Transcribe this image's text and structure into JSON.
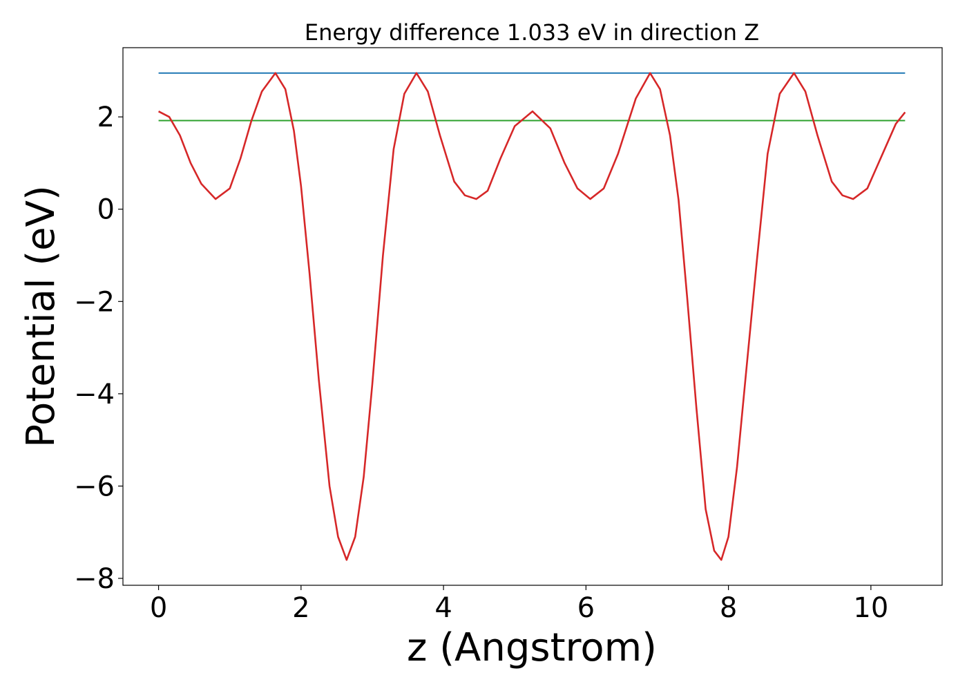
{
  "chart_data": {
    "type": "line",
    "title": "Energy difference 1.033 eV in direction Z",
    "xlabel": "z (Angstrom)",
    "ylabel": "Potential (eV)",
    "xlim": [
      -0.5,
      11.0
    ],
    "ylim": [
      -8.15,
      3.5
    ],
    "xticks": [
      0,
      2,
      4,
      6,
      8,
      10
    ],
    "xtick_labels": [
      "0",
      "2",
      "4",
      "6",
      "8",
      "10"
    ],
    "yticks": [
      -8,
      -6,
      -4,
      -2,
      0,
      2
    ],
    "ytick_labels": [
      "−8",
      "−6",
      "−4",
      "−2",
      "0",
      "2"
    ],
    "grid": false,
    "series": [
      {
        "color": "#d62728",
        "x": [
          0,
          0.15,
          0.3,
          0.45,
          0.6,
          0.8,
          1.0,
          1.15,
          1.3,
          1.45,
          1.64,
          1.78,
          1.9,
          2.0,
          2.12,
          2.25,
          2.4,
          2.52,
          2.64,
          2.76,
          2.88,
          3.0,
          3.15,
          3.3,
          3.45,
          3.62,
          3.78,
          3.95,
          4.15,
          4.3,
          4.46,
          4.62,
          4.8,
          5.0,
          5.25,
          5.5,
          5.7,
          5.88,
          6.06,
          6.25,
          6.45,
          6.7,
          6.9,
          7.04,
          7.18,
          7.3,
          7.42,
          7.55,
          7.68,
          7.8,
          7.9,
          8.0,
          8.12,
          8.25,
          8.4,
          8.55,
          8.72,
          8.92,
          9.08,
          9.25,
          9.45,
          9.6,
          9.75,
          9.95,
          10.15,
          10.35,
          10.48
        ],
        "y": [
          2.12,
          2.0,
          1.6,
          1.0,
          0.55,
          0.22,
          0.45,
          1.1,
          1.9,
          2.55,
          2.95,
          2.6,
          1.7,
          0.5,
          -1.4,
          -3.7,
          -6.0,
          -7.1,
          -7.6,
          -7.1,
          -5.8,
          -3.8,
          -1.0,
          1.3,
          2.5,
          2.95,
          2.55,
          1.6,
          0.6,
          0.3,
          0.22,
          0.4,
          1.1,
          1.8,
          2.12,
          1.75,
          1.0,
          0.45,
          0.22,
          0.45,
          1.2,
          2.4,
          2.95,
          2.6,
          1.6,
          0.2,
          -1.9,
          -4.3,
          -6.5,
          -7.4,
          -7.6,
          -7.1,
          -5.6,
          -3.5,
          -1.1,
          1.2,
          2.5,
          2.95,
          2.55,
          1.6,
          0.6,
          0.3,
          0.22,
          0.45,
          1.15,
          1.85,
          2.1
        ]
      },
      {
        "color": "#1f77b4",
        "x": [
          0,
          10.48
        ],
        "y": [
          2.95,
          2.95
        ]
      },
      {
        "color": "#2ca02c",
        "x": [
          0,
          10.48
        ],
        "y": [
          1.92,
          1.92
        ]
      }
    ]
  }
}
